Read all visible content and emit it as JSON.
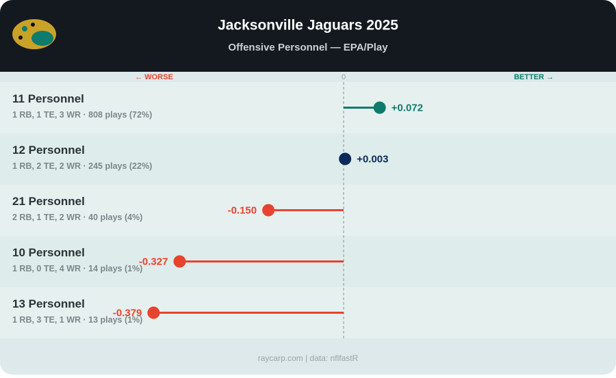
{
  "chart_data": {
    "type": "lollipop",
    "title": "Jacksonville Jaguars 2025",
    "subtitle": "Offensive Personnel — EPA/Play",
    "worse_label": "← WORSE",
    "better_label": "BETTER →",
    "categories": [
      "11 Personnel",
      "12 Personnel",
      "21 Personnel",
      "10 Personnel",
      "13 Personnel"
    ],
    "details": [
      "1 RB, 1 TE, 3 WR · 808 plays (72%)",
      "1 RB, 2 TE, 2 WR · 245 plays (22%)",
      "2 RB, 1 TE, 2 WR · 40 plays (4%)",
      "1 RB, 0 TE, 4 WR · 14 plays (1%)",
      "1 RB, 3 TE, 1 WR · 13 plays (1%)"
    ],
    "values": [
      0.072,
      0.003,
      -0.15,
      -0.327,
      -0.379
    ],
    "value_labels": [
      "+0.072",
      "+0.003",
      "-0.150",
      "-0.327",
      "-0.379"
    ],
    "colors": [
      "#0f7b6c",
      "#0b2a5b",
      "#e8432e",
      "#e8432e",
      "#e8432e"
    ],
    "xlim": [
      -0.4,
      0.4
    ],
    "xticks": [
      0
    ],
    "footer": "raycarp.com | data: nflfastR"
  }
}
